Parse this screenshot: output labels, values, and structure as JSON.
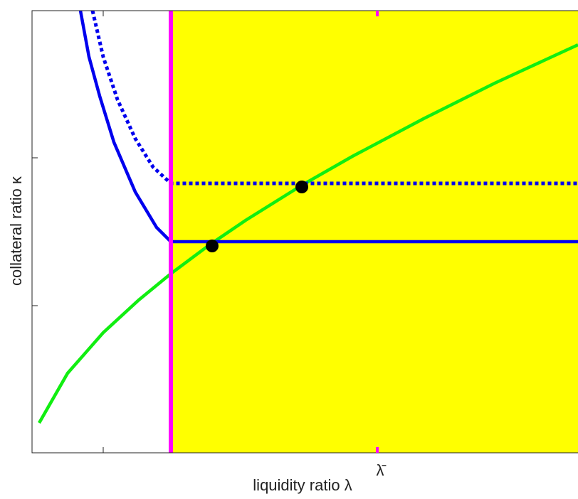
{
  "chart_data": {
    "type": "line",
    "x_label": "liquidity ratio λ",
    "y_label": "collateral ratio κ",
    "xlim": [
      0,
      7.67
    ],
    "ylim": [
      0,
      6.22
    ],
    "xticks": [
      {
        "value": 1.0,
        "label": null
      },
      {
        "value": 4.85,
        "label": "λ̄",
        "color": "#ff00ff"
      }
    ],
    "yticks": [
      {
        "value": 2.07,
        "label": null
      },
      {
        "value": 4.15,
        "label": null
      }
    ],
    "region": {
      "xmin": 1.95,
      "xmax": 7.67,
      "color": "#ffff00"
    },
    "vline": {
      "x": 1.95,
      "color": "#ff00ff"
    },
    "series": [
      {
        "color": "#11ee11",
        "style": "solid",
        "x": [
          0.1,
          0.5,
          1,
          1.5,
          1.95,
          2.5,
          3,
          3.8,
          4.5,
          5.5,
          6.5,
          7.67
        ],
        "values": [
          0.42,
          1.12,
          1.69,
          2.15,
          2.52,
          2.93,
          3.27,
          3.77,
          4.17,
          4.7,
          5.2,
          5.74
        ]
      },
      {
        "color": "#0000ee",
        "style": "solid",
        "x": [
          0.68,
          0.8,
          0.95,
          1.15,
          1.45,
          1.75,
          1.95,
          7.67
        ],
        "values": [
          6.22,
          5.57,
          5.02,
          4.37,
          3.67,
          3.17,
          2.97,
          2.97
        ]
      },
      {
        "color": "#0000ee",
        "style": "dotted",
        "x": [
          0.85,
          1.0,
          1.2,
          1.45,
          1.7,
          1.95,
          7.67
        ],
        "values": [
          6.22,
          5.57,
          4.97,
          4.42,
          4.02,
          3.79,
          3.79
        ]
      }
    ],
    "markers": {
      "color": "#000000",
      "x": [
        2.53,
        3.79
      ],
      "values": [
        2.91,
        3.74
      ]
    }
  }
}
